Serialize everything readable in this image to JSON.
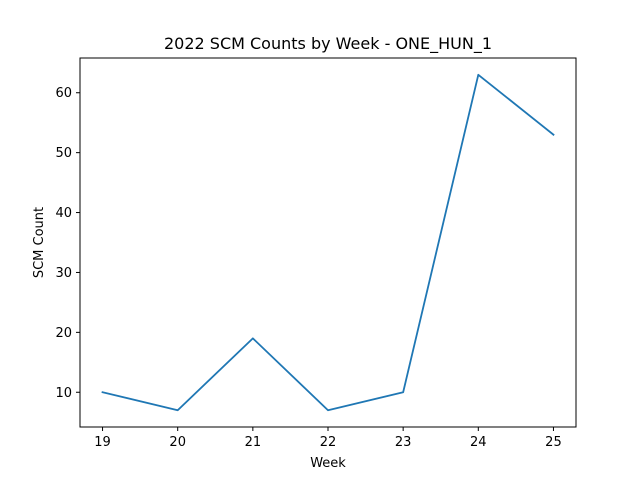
{
  "chart_data": {
    "type": "line",
    "title": "2022 SCM Counts by Week - ONE_HUN_1",
    "xlabel": "Week",
    "ylabel": "SCM Count",
    "x": [
      19,
      20,
      21,
      22,
      23,
      24,
      25
    ],
    "series": [
      {
        "values": [
          10,
          7,
          19,
          7,
          10,
          63,
          53
        ],
        "color": "#1f77b4"
      }
    ],
    "xlim": [
      18.7,
      25.3
    ],
    "ylim": [
      4.2,
      65.8
    ],
    "xticks": [
      19,
      20,
      21,
      22,
      23,
      24,
      25
    ],
    "yticks": [
      10,
      20,
      30,
      40,
      50,
      60
    ],
    "grid": false,
    "legend": "none"
  }
}
